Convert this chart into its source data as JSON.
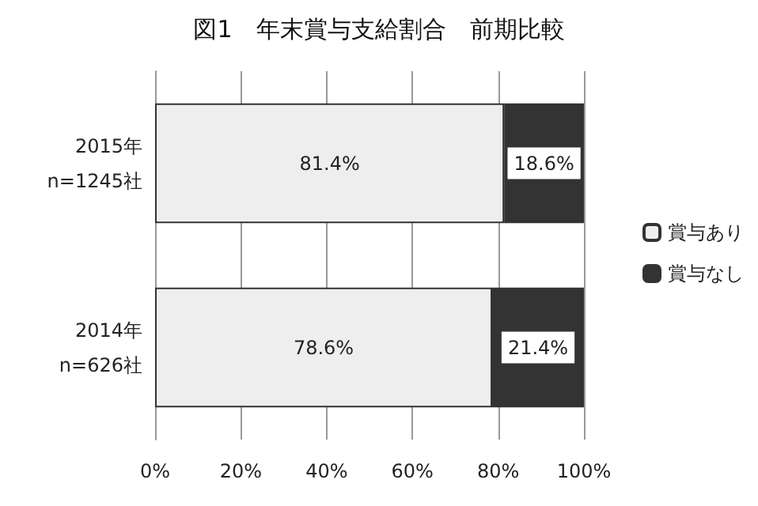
{
  "chart_data": {
    "type": "bar",
    "title": "図1　年末賞与支給割合　前期比較",
    "orientation": "horizontal",
    "stacked": true,
    "categories": [
      "2015年\nn=1245社",
      "2014年\nn=626社"
    ],
    "series": [
      {
        "name": "賞与あり",
        "color": "#eeeeee",
        "values": [
          81.4,
          78.6
        ],
        "value_labels": [
          "81.4%",
          "78.6%"
        ]
      },
      {
        "name": "賞与なし",
        "color": "#333333",
        "values": [
          18.6,
          21.4
        ],
        "value_labels": [
          "18.6%",
          "21.4%"
        ]
      }
    ],
    "xlim": [
      0,
      100
    ],
    "xticks": [
      {
        "value": 0,
        "label": "0%"
      },
      {
        "value": 20,
        "label": "20%"
      },
      {
        "value": 40,
        "label": "40%"
      },
      {
        "value": 60,
        "label": "60%"
      },
      {
        "value": 80,
        "label": "80%"
      },
      {
        "value": 100,
        "label": "100%"
      }
    ],
    "grid": "x",
    "legend": "right"
  }
}
